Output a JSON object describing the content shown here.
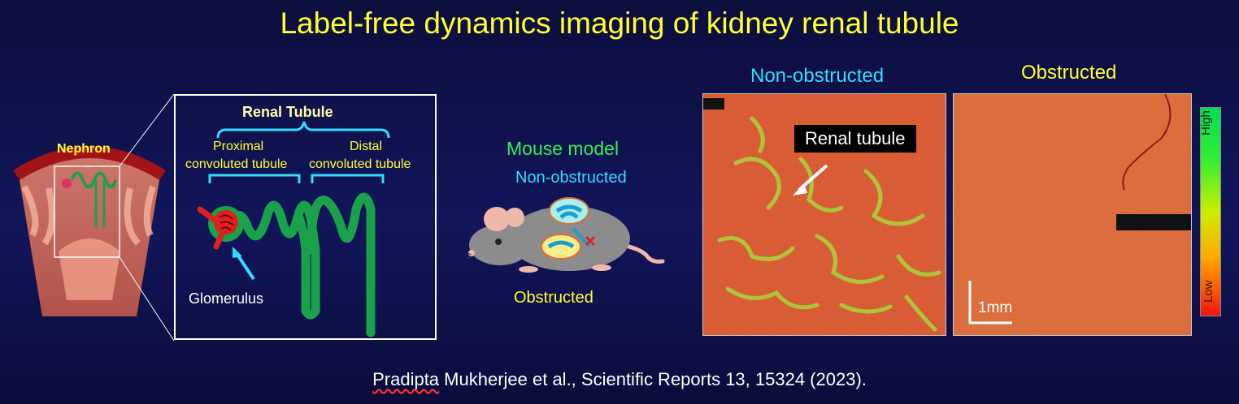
{
  "title": "Label-free dynamics imaging of kidney renal tubule",
  "nephron": {
    "label": "Nephron"
  },
  "tubule_diagram": {
    "heading": "Renal Tubule",
    "proximal_line1": "Proximal",
    "proximal_line2": "convoluted tubule",
    "distal_line1": "Distal",
    "distal_line2": "convoluted tubule",
    "glomerulus": "Glomerulus"
  },
  "mouse": {
    "heading": "Mouse model",
    "non_obstructed": "Non-obstructed",
    "obstructed": "Obstructed"
  },
  "images": {
    "left_title": "Non-obstructed",
    "right_title": "Obstructed",
    "callout": "Renal tubule",
    "scale_bar": "1mm"
  },
  "colorbar": {
    "high": "High",
    "low": "Low"
  },
  "citation": {
    "author": "Pradipta",
    "rest": " Mukherjee et al., Scientific Reports 13, 15324 (2023)."
  },
  "colors": {
    "title": "#ffff33",
    "cyan": "#33ddff",
    "green": "#33ee55",
    "tubule": "#1aa24a",
    "background": "#10135a"
  }
}
